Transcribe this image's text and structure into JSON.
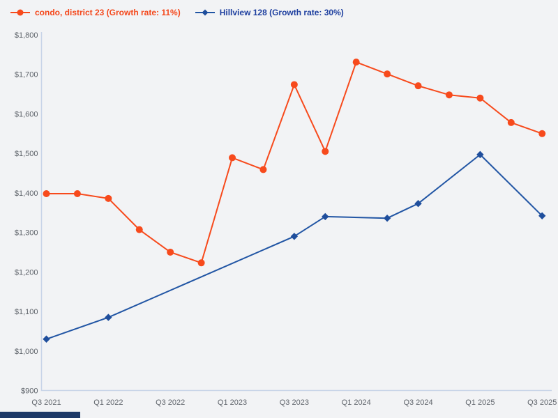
{
  "ui": {
    "background_color": "#f2f3f5",
    "axis_color": "#c8d4e8",
    "tick_label_color": "#5d6269",
    "bottom_bar_color": "#1d3968"
  },
  "legend": [
    {
      "label": "condo, district 23 (Growth rate: 11%)",
      "text_color": "#f4481c",
      "marker": "circle"
    },
    {
      "label": "Hillview 128 (Growth rate: 30%)",
      "text_color": "#1e3f9f",
      "marker": "diamond"
    }
  ],
  "chart_data": {
    "type": "line",
    "title": "",
    "xlabel": "",
    "ylabel": "",
    "grid": false,
    "legend_position": "top-left",
    "ylim": [
      900,
      1800
    ],
    "y_tick_step": 100,
    "y_ticks": [
      "$900",
      "$1,000",
      "$1,100",
      "$1,200",
      "$1,300",
      "$1,400",
      "$1,500",
      "$1,600",
      "$1,700",
      "$1,800"
    ],
    "x_categories": [
      "Q3 2021",
      "Q4 2021",
      "Q1 2022",
      "Q2 2022",
      "Q3 2022",
      "Q4 2022",
      "Q1 2023",
      "Q2 2023",
      "Q3 2023",
      "Q4 2023",
      "Q1 2024",
      "Q2 2024",
      "Q3 2024",
      "Q4 2024",
      "Q1 2025",
      "Q2 2025",
      "Q3 2025"
    ],
    "x_tick_labels": [
      "Q3 2021",
      "Q1 2022",
      "Q3 2022",
      "Q1 2023",
      "Q3 2023",
      "Q1 2024",
      "Q3 2024",
      "Q1 2025",
      "Q3 2025"
    ],
    "series": [
      {
        "id": "condo-district-23",
        "name": "condo, district 23 (Growth rate: 11%)",
        "growth_rate": "11%",
        "line_color": "#f74a1c",
        "marker_color": "#f74a1c",
        "marker": "circle",
        "x_indices": [
          0,
          1,
          2,
          3,
          4,
          5,
          6,
          7,
          8,
          9,
          10,
          11,
          12,
          13,
          14,
          15,
          16
        ],
        "quarters": [
          "Q3 2021",
          "Q4 2021",
          "Q1 2022",
          "Q2 2022",
          "Q3 2022",
          "Q4 2022",
          "Q1 2023",
          "Q2 2023",
          "Q3 2023",
          "Q4 2023",
          "Q1 2024",
          "Q2 2024",
          "Q3 2024",
          "Q4 2024",
          "Q1 2025",
          "Q2 2025",
          "Q3 2025"
        ],
        "values": [
          1398,
          1398,
          1386,
          1307,
          1250,
          1223,
          1489,
          1459,
          1674,
          1505,
          1731,
          1701,
          1671,
          1648,
          1640,
          1578,
          1550
        ]
      },
      {
        "id": "hillview-128",
        "name": "Hillview 128 (Growth rate: 30%)",
        "growth_rate": "30%",
        "line_color": "#2155a4",
        "marker_color": "#1f4e9c",
        "marker": "diamond",
        "x_indices": [
          0,
          2,
          8,
          9,
          11,
          12,
          14,
          16
        ],
        "quarters": [
          "Q3 2021",
          "Q1 2022",
          "Q3 2023",
          "Q4 2023",
          "Q2 2024",
          "Q3 2024",
          "Q1 2025",
          "Q3 2025"
        ],
        "values": [
          1030,
          1085,
          1290,
          1340,
          1336,
          1373,
          1497,
          1342
        ]
      }
    ]
  }
}
